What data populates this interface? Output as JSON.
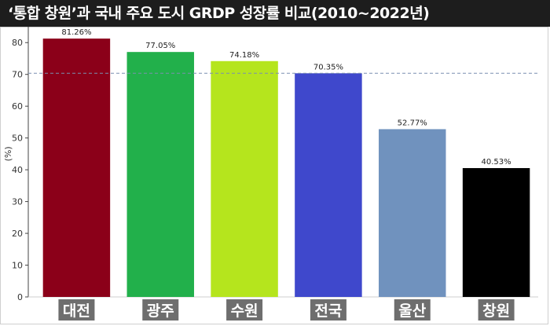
{
  "title": "‘통합 창원’과 국내 주요 도시 GRDP 성장률 비교(2010~2022년)",
  "chart_data": {
    "type": "bar",
    "title": "‘통합 창원’과 국내 주요 도시 GRDP 성장률 비교(2010~2022년)",
    "categories": [
      "대전",
      "광주",
      "수원",
      "전국",
      "울산",
      "창원"
    ],
    "values": [
      81.26,
      77.05,
      74.18,
      70.35,
      52.77,
      40.53
    ],
    "data_labels": [
      "81.26%",
      "77.05%",
      "74.18%",
      "70.35%",
      "52.77%",
      "40.53%"
    ],
    "colors": [
      "#8b0019",
      "#22b04b",
      "#b5e51d",
      "#3f48cc",
      "#7092be",
      "#000000"
    ],
    "ylabel": "(%)",
    "xlabel": "",
    "ylim": [
      0,
      85
    ],
    "yticks": [
      0,
      10,
      20,
      30,
      40,
      50,
      60,
      70,
      80
    ],
    "reference_line": {
      "value": 70.35,
      "style": "dashed",
      "color": "#7a8fb0"
    },
    "grid": false,
    "legend": "none"
  }
}
